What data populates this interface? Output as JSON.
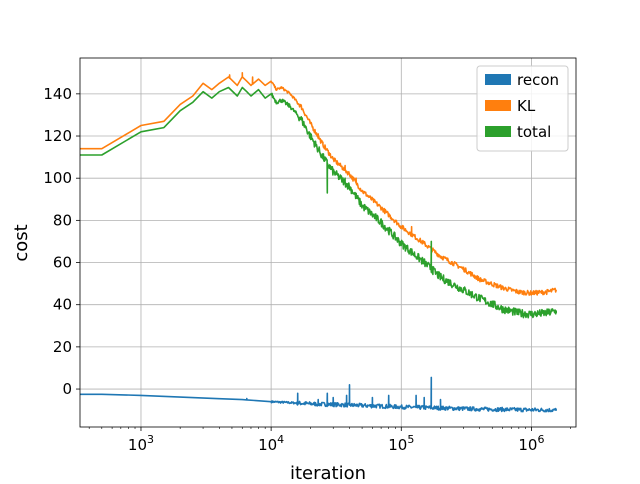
{
  "chart_data": {
    "type": "line",
    "xlabel": "iteration",
    "ylabel": "cost",
    "xscale": "log",
    "xlim": [
      340,
      2200000
    ],
    "ylim": [
      -18,
      157
    ],
    "grid": true,
    "legend_position": "top-right",
    "x_ticks": [
      {
        "value": 1000,
        "base": "10",
        "exp": "3"
      },
      {
        "value": 10000,
        "base": "10",
        "exp": "4"
      },
      {
        "value": 100000,
        "base": "10",
        "exp": "5"
      },
      {
        "value": 1000000,
        "base": "10",
        "exp": "6"
      }
    ],
    "y_ticks": [
      0,
      20,
      40,
      60,
      80,
      100,
      120,
      140
    ],
    "series": [
      {
        "name": "recon",
        "color": "#1f77b4",
        "x": [
          340,
          500,
          1000,
          2000,
          4000,
          6000,
          10000,
          20000,
          50000,
          100000,
          200000,
          400000,
          800000,
          1200000,
          1550000
        ],
        "y": [
          -2.5,
          -2.5,
          -3.0,
          -3.8,
          -4.6,
          -5.0,
          -6.0,
          -7.0,
          -7.8,
          -8.5,
          -9.0,
          -9.5,
          -9.8,
          -9.9,
          -10.0
        ],
        "noise": 0.6,
        "spikes": [
          [
            6500,
            -4.5
          ],
          [
            16000,
            -2
          ],
          [
            23000,
            -5
          ],
          [
            27000,
            -2
          ],
          [
            30000,
            -4
          ],
          [
            38000,
            -3
          ],
          [
            40000,
            2
          ],
          [
            60000,
            -4
          ],
          [
            80000,
            -3
          ],
          [
            130000,
            -3
          ],
          [
            150000,
            -4
          ],
          [
            170000,
            5.5
          ],
          [
            200000,
            -5
          ]
        ]
      },
      {
        "name": "KL",
        "color": "#ff7f0e",
        "x": [
          340,
          500,
          1000,
          1500,
          2000,
          2500,
          3000,
          3500,
          4000,
          4700,
          5500,
          6000,
          6500,
          7000,
          8000,
          9000,
          10000,
          11000,
          12000,
          14000,
          17000,
          20000,
          25000,
          30000,
          40000,
          50000,
          70000,
          100000,
          150000,
          200000,
          300000,
          400000,
          600000,
          800000,
          1000000,
          1300000,
          1550000
        ],
        "y": [
          114,
          114,
          125,
          127,
          135,
          139,
          145,
          142,
          145,
          148,
          144,
          148,
          146,
          144,
          147,
          144,
          146,
          142,
          143,
          140,
          134,
          126,
          116,
          109,
          102,
          94,
          86,
          77,
          69,
          63,
          57,
          52,
          48,
          46,
          45.5,
          46,
          47
        ],
        "noise": 0.7,
        "spikes": [
          [
            4800,
            149
          ],
          [
            6000,
            150
          ],
          [
            7200,
            148
          ],
          [
            23000,
            121
          ],
          [
            28000,
            112
          ],
          [
            37000,
            106
          ],
          [
            45000,
            100
          ],
          [
            120000,
            77
          ]
        ]
      },
      {
        "name": "total",
        "color": "#2ca02c",
        "x": [
          340,
          500,
          1000,
          1500,
          2000,
          2500,
          3000,
          3500,
          4000,
          4700,
          5500,
          6000,
          6500,
          7000,
          8000,
          9000,
          10000,
          11000,
          12000,
          14000,
          17000,
          20000,
          25000,
          30000,
          40000,
          50000,
          70000,
          100000,
          150000,
          200000,
          300000,
          400000,
          600000,
          800000,
          1000000,
          1300000,
          1550000
        ],
        "y": [
          111,
          111,
          122,
          124,
          132,
          136,
          141,
          138,
          141,
          143,
          139,
          143,
          141,
          139,
          142,
          138,
          140,
          136,
          137,
          134,
          128,
          120,
          110,
          103,
          96,
          87,
          79,
          69,
          60,
          53,
          47,
          43,
          38,
          36,
          35.5,
          36,
          37
        ],
        "noise": 1.2,
        "spikes": [
          [
            23000,
            113
          ],
          [
            27000,
            93
          ],
          [
            28500,
            106
          ],
          [
            37000,
            100
          ],
          [
            45000,
            92
          ],
          [
            170000,
            70
          ],
          [
            175000,
            58
          ]
        ]
      }
    ]
  }
}
